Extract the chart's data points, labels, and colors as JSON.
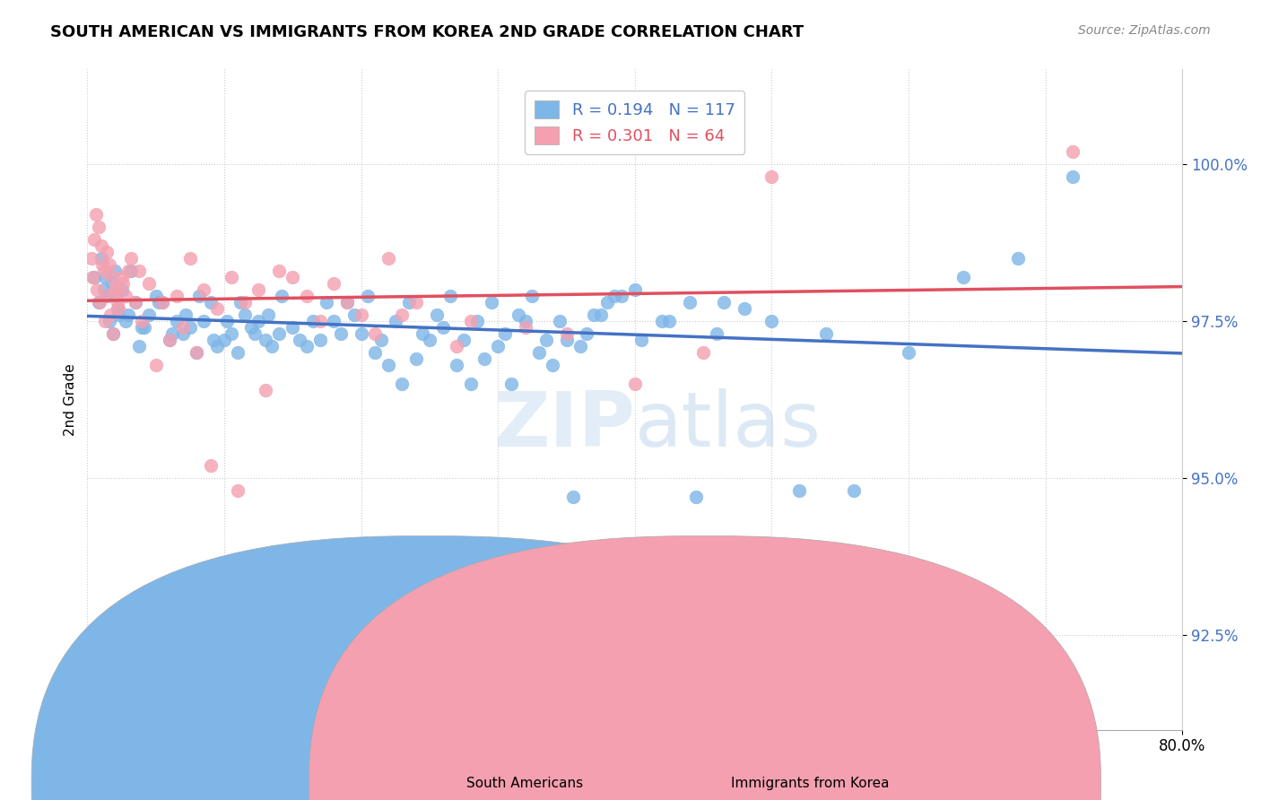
{
  "title": "SOUTH AMERICAN VS IMMIGRANTS FROM KOREA 2ND GRADE CORRELATION CHART",
  "source": "Source: ZipAtlas.com",
  "ylabel": "2nd Grade",
  "ytick_values": [
    92.5,
    95.0,
    97.5,
    100.0
  ],
  "xlim": [
    0.0,
    80.0
  ],
  "ylim": [
    91.0,
    101.5
  ],
  "blue_color": "#7EB6E8",
  "pink_color": "#F4A0B0",
  "blue_line_color": "#4472C4",
  "pink_line_color": "#E05060",
  "legend_blue_label": "R = 0.194   N = 117",
  "legend_pink_label": "R = 0.301   N = 64",
  "legend_south_label": "South Americans",
  "legend_korea_label": "Immigrants from Korea",
  "watermark_zip": "ZIP",
  "watermark_atlas": "atlas",
  "blue_scatter_x": [
    0.5,
    0.8,
    1.0,
    1.2,
    1.5,
    1.8,
    2.0,
    2.2,
    2.5,
    2.8,
    3.0,
    3.5,
    4.0,
    4.5,
    5.0,
    5.5,
    6.0,
    6.5,
    7.0,
    7.5,
    8.0,
    8.5,
    9.0,
    9.5,
    10.0,
    10.5,
    11.0,
    11.5,
    12.0,
    12.5,
    13.0,
    13.5,
    14.0,
    15.0,
    16.0,
    17.0,
    18.0,
    19.0,
    20.0,
    21.0,
    22.0,
    23.0,
    24.0,
    25.0,
    26.0,
    27.0,
    28.0,
    29.0,
    30.0,
    31.0,
    32.0,
    33.0,
    34.0,
    35.0,
    36.0,
    37.0,
    38.0,
    39.0,
    40.0,
    42.0,
    44.0,
    46.0,
    48.0,
    50.0,
    52.0,
    54.0,
    56.0,
    60.0,
    64.0,
    68.0,
    72.0,
    1.3,
    1.6,
    1.9,
    2.1,
    2.3,
    3.2,
    3.8,
    4.2,
    5.2,
    6.2,
    7.2,
    8.2,
    9.2,
    10.2,
    11.2,
    12.2,
    13.2,
    14.2,
    15.5,
    16.5,
    17.5,
    18.5,
    19.5,
    20.5,
    21.5,
    22.5,
    23.5,
    24.5,
    25.5,
    26.5,
    27.5,
    28.5,
    29.5,
    30.5,
    31.5,
    32.5,
    33.5,
    34.5,
    35.5,
    36.5,
    37.5,
    38.5,
    40.5,
    42.5,
    44.5,
    46.5
  ],
  "blue_scatter_y": [
    98.2,
    97.8,
    98.5,
    98.0,
    97.9,
    98.1,
    98.3,
    97.7,
    98.0,
    97.5,
    97.6,
    97.8,
    97.4,
    97.6,
    97.9,
    97.8,
    97.2,
    97.5,
    97.3,
    97.4,
    97.0,
    97.5,
    97.8,
    97.1,
    97.2,
    97.3,
    97.0,
    97.6,
    97.4,
    97.5,
    97.2,
    97.1,
    97.3,
    97.4,
    97.1,
    97.2,
    97.5,
    97.8,
    97.3,
    97.0,
    96.8,
    96.5,
    96.9,
    97.2,
    97.4,
    96.8,
    96.5,
    96.9,
    97.1,
    96.5,
    97.5,
    97.0,
    96.8,
    97.2,
    97.1,
    97.6,
    97.8,
    97.9,
    98.0,
    97.5,
    97.8,
    97.3,
    97.7,
    97.5,
    94.8,
    97.3,
    94.8,
    97.0,
    98.2,
    98.5,
    99.8,
    98.2,
    97.5,
    97.3,
    97.9,
    97.6,
    98.3,
    97.1,
    97.4,
    97.8,
    97.3,
    97.6,
    97.9,
    97.2,
    97.5,
    97.8,
    97.3,
    97.6,
    97.9,
    97.2,
    97.5,
    97.8,
    97.3,
    97.6,
    97.9,
    97.2,
    97.5,
    97.8,
    97.3,
    97.6,
    97.9,
    97.2,
    97.5,
    97.8,
    97.3,
    97.6,
    97.9,
    97.2,
    97.5,
    94.7,
    97.3,
    97.6,
    97.9,
    97.2,
    97.5,
    94.7,
    97.8
  ],
  "pink_scatter_x": [
    0.3,
    0.5,
    0.6,
    0.8,
    1.0,
    1.2,
    1.4,
    1.6,
    1.8,
    2.0,
    2.2,
    2.5,
    2.8,
    3.2,
    3.8,
    4.5,
    5.5,
    6.5,
    7.5,
    8.5,
    9.5,
    10.5,
    11.5,
    12.5,
    14.0,
    16.0,
    18.0,
    20.0,
    22.0,
    24.0,
    28.0,
    35.0,
    40.0,
    50.0,
    0.4,
    0.7,
    0.9,
    1.1,
    1.3,
    1.5,
    1.7,
    1.9,
    2.1,
    2.3,
    2.6,
    3.0,
    3.5,
    4.0,
    5.0,
    6.0,
    7.0,
    8.0,
    9.0,
    11.0,
    13.0,
    15.0,
    17.0,
    19.0,
    21.0,
    23.0,
    27.0,
    32.0,
    45.0,
    72.0
  ],
  "pink_scatter_y": [
    98.5,
    98.8,
    99.2,
    99.0,
    98.7,
    98.3,
    98.6,
    98.4,
    98.2,
    98.0,
    97.8,
    98.2,
    97.9,
    98.5,
    98.3,
    98.1,
    97.8,
    97.9,
    98.5,
    98.0,
    97.7,
    98.2,
    97.8,
    98.0,
    98.3,
    97.9,
    98.1,
    97.6,
    98.5,
    97.8,
    97.5,
    97.3,
    96.5,
    99.8,
    98.2,
    98.0,
    97.8,
    98.4,
    97.5,
    97.9,
    97.6,
    97.3,
    98.0,
    97.7,
    98.1,
    98.3,
    97.8,
    97.5,
    96.8,
    97.2,
    97.4,
    97.0,
    95.2,
    94.8,
    96.4,
    98.2,
    97.5,
    97.8,
    97.3,
    97.6,
    97.1,
    97.4,
    97.0,
    100.2
  ]
}
